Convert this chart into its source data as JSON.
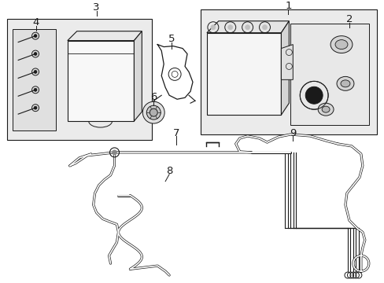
{
  "background_color": "#ffffff",
  "line_color": "#1a1a1a",
  "box_fill": "#f0f0f0",
  "fig_width": 4.89,
  "fig_height": 3.6,
  "dpi": 100
}
